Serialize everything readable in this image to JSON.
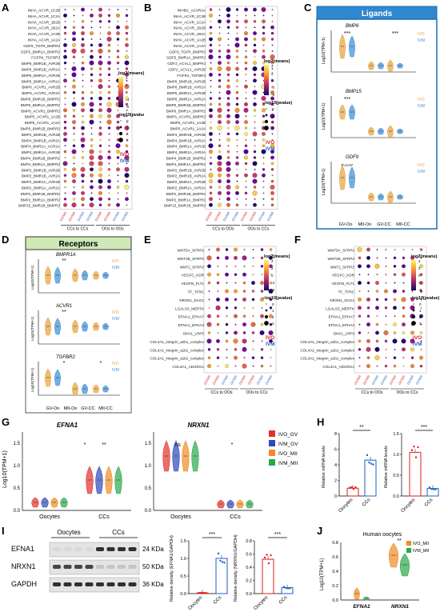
{
  "panel_labels": {
    "A": "A",
    "B": "B",
    "C": "C",
    "D": "D",
    "E": "E",
    "F": "F",
    "G": "G",
    "H": "H",
    "I": "I",
    "J": "J"
  },
  "colors": {
    "ivo": "#e8a33a",
    "ivm": "#3a8fd6",
    "ivo_gv": "#e4312b",
    "ivm_gv": "#2e49b8",
    "ivo_mii": "#f08c24",
    "ivm_mii": "#2aa84a",
    "legend_box_border": "#1d6fb3",
    "ligands_bg": "#2f88d0",
    "receptors_bg": "#cde9b7"
  },
  "dot_legend": {
    "log2_title": "log2(means)",
    "log2_ticks_ab": [
      "4",
      "2",
      "0",
      "-4",
      "-8"
    ],
    "pval_title": "−log10(pvalue)",
    "pval_ticks": [
      "0",
      "1",
      "2",
      "3"
    ],
    "ivo": "IVO",
    "ivm": "IVM"
  },
  "dot_legend_ef": {
    "log2_ticks": [
      "4",
      "2",
      "0",
      "-4",
      "-8"
    ]
  },
  "panel_a": {
    "rows": [
      "INHA_ACVR_1C2B",
      "INHA_ACVR_1C2A",
      "INHA_ACVR_1B2B",
      "INHA_ACVR_1B2A",
      "INHA_ACVR_1A2B",
      "INHA_ACVR_1A2A",
      "GDF9_TGFR_BMPR2",
      "GDF5_BMR1A_BMPR2",
      "FGFR4_TGFBR3",
      "BMP6_BMR1B_AVR2B",
      "BMP6_BMR1B_AVR2A",
      "BMP6_BMR1A_AVR2B",
      "BMP6_BMR1A_AVR2A",
      "BMP6_ACVR1_AVR2B",
      "BMP6_ACVR1_AVR2A",
      "BMP6_BMR1B_BMPR2",
      "BMP6_BMR1A_BMPR2",
      "BMP6_ACVR1_BMPR2",
      "BMP5_ACVR1_1A2B",
      "BMP5_ACVR1_1A2A",
      "BMP5_BMR1B_BMPR2",
      "BMP4_BMR1B_AVR2B",
      "BMP4_BMR1B_AVR2A",
      "BMP4_BMR1A_ACR2A",
      "BMP4_BMR1A_AVR2B",
      "BMP4_BMR1B_BMPR2",
      "BMP4_BMR1A_BMPR2",
      "BMP2_BMR1B_AVR2B",
      "BMP2_BMR1B_AVR2A",
      "BMP2_BMR1A_AVR2B",
      "BMP2_BMR1A_AVR2A",
      "BMP2_BMR1B_BMPR2",
      "BMP2_BMR1A_BMPR2",
      "BMP15_BMR1B_BMPR2"
    ],
    "cols": [
      "GV/CC|GV/CC",
      "GV/CC|GV-Oo",
      "MII/CC|MII-CC",
      "MII/CC|MII-Oo",
      "GV-Oo|GV/CC",
      "GV-Oo|GV-Oo",
      "MII-Oo|MII/CC",
      "MII-Oo|MII-Oo"
    ],
    "groups": [
      "CCs to CCs",
      "OOs to OOs"
    ]
  },
  "panel_b": {
    "rows": [
      "INHBC_ACVR2A",
      "INHA_ACVR_1C2B",
      "INHA_ACVR_1C2A",
      "INHA_ACVR_1B2B",
      "INHA_ACVR_1B2A",
      "INHA_ACVR_1A2B",
      "INHA_ACVR_1A2A",
      "GDF9_TGFR_BMPR2",
      "GDF5_BMR1A_BMPR2",
      "GDF2_ACVL1_BMPR2",
      "GDF2_ACVL1_AVR2B",
      "FGFR4_TGFBR3",
      "BMP6_BMR1B_AVR2B",
      "BMP6_BMR1B_AVR2A",
      "BMP6_BMR1A_AVR2B",
      "BMP6_BMR1A_AVR2A",
      "BMP6_BMR1B_BMPR2",
      "BMP6_BMR1A_BMPR2",
      "BMP6_ACVR1_BMPR2",
      "BMP5_ACVR1_1A2B",
      "BMP5_ACVR1_1A2A",
      "BMP4_BMR1B_AVR2B",
      "BMP4_BMR1B_AVR2A",
      "BMP4_BMR1A_AVR2B",
      "BMP4_BMR1A_AVR2A",
      "BMP4_BMR1B_BMPR2",
      "BMP4_BMR1A_BMPR2",
      "BMP2_BMR1B_AVR2B",
      "BMP2_BMR1B_AVR2A",
      "BMP2_BMR1A_AVR2B",
      "BMP2_BMR1A_AVR2A",
      "BMP2_BMR1B_BMPR2",
      "BMP2_BMR1A_BMPR2",
      "BMP15_BMR1B_BMPR2"
    ],
    "groups": [
      "CCs to OOs",
      "OOs to CCs"
    ]
  },
  "panel_c": {
    "title": "Ligands",
    "subplots": [
      {
        "gene": "BMP6",
        "sig": [
          "***",
          "***"
        ]
      },
      {
        "gene": "BMP15",
        "sig": [
          "***"
        ]
      },
      {
        "gene": "GDF9",
        "sig": [
          "P=0.07"
        ]
      }
    ],
    "xticks": [
      "GV-Oo",
      "MII-Oo",
      "GV-CC",
      "MII-CC"
    ],
    "ylabel": "Log10(TPM+1)"
  },
  "panel_d": {
    "title": "Receptors",
    "subplots": [
      {
        "gene": "BMPR1A",
        "sig": [
          "**"
        ]
      },
      {
        "gene": "ACVR1",
        "sig": [
          "**"
        ]
      },
      {
        "gene": "TGFBR2",
        "sig": [
          "*",
          "*"
        ]
      }
    ],
    "xticks": [
      "GV-Oo",
      "MII-Oo",
      "GV-CC",
      "MII-CC"
    ],
    "ylabel": "Log10(TPM+1)"
  },
  "panel_e": {
    "rows": [
      "WNT5A_SFRP2",
      "WNT2B_SFRP2",
      "WNT2_SFRP2",
      "VEGFC_KDR",
      "VEGFB_FLT1",
      "TF_TFRC",
      "NRXN1_DAG1",
      "LGALS3_MERTK",
      "EFNA1_EPHA7",
      "EFNA1_EPHA4",
      "DKK1_LRP5",
      "COL4A1_integrin_a2b1_complex",
      "COL4A1_integrin_a1b1_complex",
      "COL3A1_integrin_a1b1_complex",
      "COL3A1_ADGRG1"
    ],
    "groups": [
      "CCs to OOs",
      "OOs to CCs"
    ]
  },
  "panel_f": {
    "rows": [
      "WNT5A_SFRP2",
      "WNT2B_SFRP2",
      "WNT2_SFRP2",
      "VEGFC_KDR",
      "VEGFB_FLT1",
      "TF_TFRC",
      "NRXN1_DAG1",
      "LGALS3_MERTK",
      "EFNA1_EPHA7",
      "EFNA1_EPHA4",
      "DKK1_LRP5",
      "COL4A1_integrin_a2b1_complex",
      "COL4A1_integrin_a1b1_complex",
      "COL3A1_integrin_a1b1_complex",
      "COL3A1_ADGRG1"
    ],
    "groups": [
      "CCs to OOs",
      "OOs to CCs"
    ]
  },
  "panel_g": {
    "gene_left": "EFNA1",
    "gene_right": "NRXN1",
    "ylabel": "Log10(TPM+1)",
    "yticks": [
      "0.0",
      "0.5",
      "1.0",
      "1.5"
    ],
    "xticks": [
      "Oocytes",
      "CCs"
    ],
    "sig_left": [
      "*",
      "**"
    ],
    "sig_right": [
      "ns",
      "*"
    ],
    "legend": [
      "IVO_GV",
      "IVM_GV",
      "IVO_MII",
      "IVM_MII"
    ]
  },
  "panel_h": {
    "ylabel": "Relative mRNA levels",
    "left": {
      "yticks": [
        "0",
        "2",
        "4",
        "6",
        "8"
      ],
      "xticks": [
        "Oocytes",
        "CCs"
      ],
      "sig": "**",
      "values": [
        1.0,
        4.6
      ]
    },
    "right": {
      "yticks": [
        "0.0",
        "0.5",
        "1.0",
        "1.5"
      ],
      "xticks": [
        "Oocytes",
        "CCs"
      ],
      "sig": "***",
      "values": [
        1.05,
        0.18
      ]
    }
  },
  "panel_i": {
    "group_left": "Oocytes",
    "group_right": "CCs",
    "blots": [
      {
        "name": "EFNA1",
        "kda": "24 KDa"
      },
      {
        "name": "NRXN1",
        "kda": "50 KDa"
      },
      {
        "name": "GAPDH",
        "kda": "36 KDa"
      }
    ],
    "bar1": {
      "ylabel": "Relative density (EFNA1/GAPDH)",
      "yticks": [
        "0.0",
        "0.5",
        "1.0",
        "1.5"
      ],
      "xticks": [
        "Oocytes",
        "CCs"
      ],
      "sig": "***",
      "values": [
        0.02,
        1.0
      ]
    },
    "bar2": {
      "ylabel": "Relative density (NRXN1/GAPDH)",
      "yticks": [
        "0.0",
        "0.2",
        "0.4",
        "0.6",
        "0.8"
      ],
      "xticks": [
        "Oocytes",
        "CCs"
      ],
      "sig": "***",
      "values": [
        0.52,
        0.09
      ]
    }
  },
  "panel_j": {
    "title": "Human oocytes",
    "ylabel": "Log10(TPM+1)",
    "yticks": [
      "0.0",
      "0.2",
      "0.4",
      "0.6",
      "0.8"
    ],
    "xticks": [
      "EFNA1",
      "NRXN1"
    ],
    "sig": "**",
    "legend": [
      "IVO_MII",
      "IVM_MII"
    ]
  },
  "chart_data": [
    {
      "type": "bar",
      "title": "",
      "ylabel": "Relative mRNA levels",
      "categories": [
        "Oocytes",
        "CCs"
      ],
      "values": [
        1.0,
        4.6
      ],
      "ylim": [
        0,
        8
      ]
    },
    {
      "type": "bar",
      "title": "",
      "ylabel": "Relative mRNA levels",
      "categories": [
        "Oocytes",
        "CCs"
      ],
      "values": [
        1.05,
        0.18
      ],
      "ylim": [
        0,
        1.5
      ]
    },
    {
      "type": "bar",
      "title": "",
      "ylabel": "Relative density (EFNA1/GAPDH)",
      "categories": [
        "Oocytes",
        "CCs"
      ],
      "values": [
        0.02,
        1.0
      ],
      "ylim": [
        0,
        1.5
      ]
    },
    {
      "type": "bar",
      "title": "",
      "ylabel": "Relative density (NRXN1/GAPDH)",
      "categories": [
        "Oocytes",
        "CCs"
      ],
      "values": [
        0.52,
        0.09
      ],
      "ylim": [
        0,
        0.8
      ]
    }
  ]
}
